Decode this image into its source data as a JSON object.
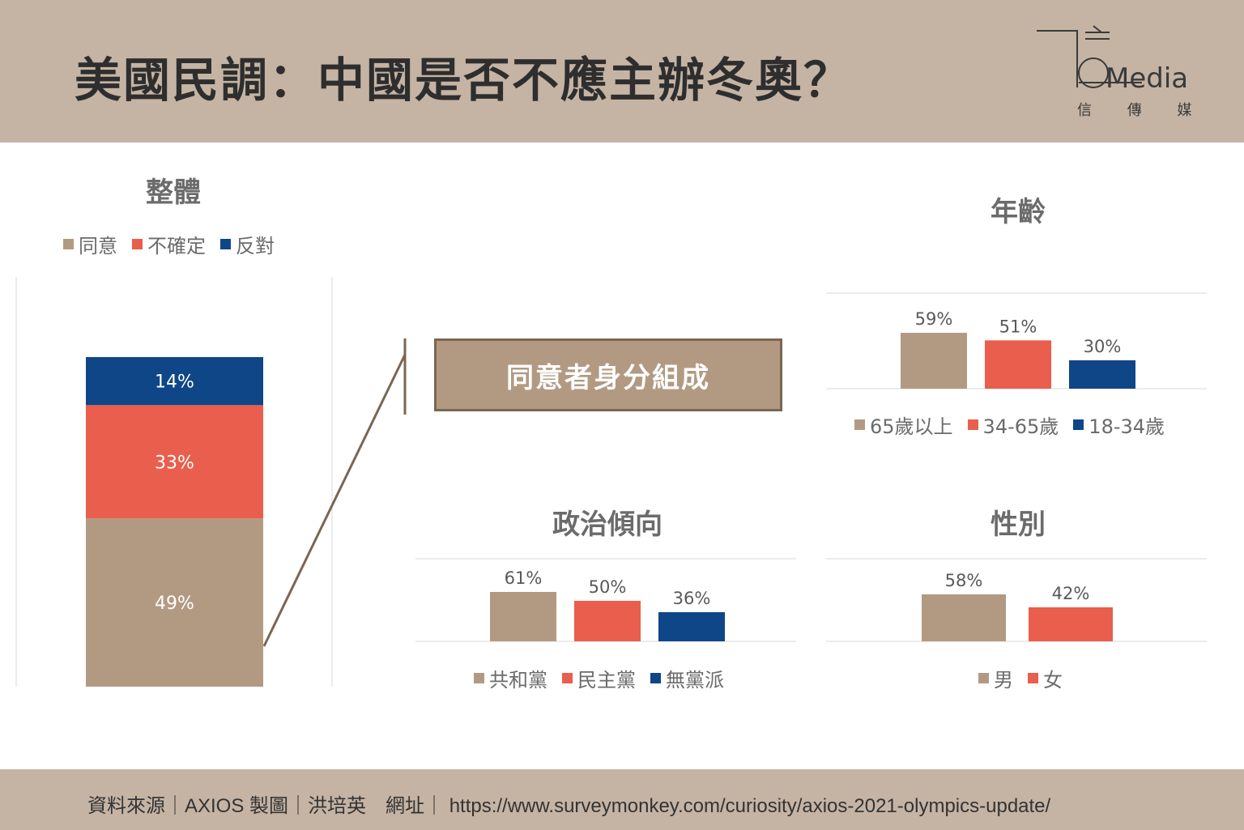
{
  "header": {
    "title": "美國民調：中國是否不應主辦冬奧？"
  },
  "logo": {
    "text": "Media",
    "subtitle": "信 傳 媒"
  },
  "callout": {
    "label": "同意者身分組成"
  },
  "colors": {
    "agree": "#b29a82",
    "unsure": "#e95e4c",
    "oppose": "#0f4687",
    "header": "#c5b4a4"
  },
  "footer": {
    "source": "資料來源｜AXIOS 製圖｜洪培英　網址｜ https://www.surveymonkey.com/curiosity/axios-2021-olympics-update/"
  },
  "chart_data": [
    {
      "id": "overall",
      "type": "bar",
      "stacked": true,
      "title": "整體",
      "categories": [
        ""
      ],
      "series": [
        {
          "name": "同意",
          "values": [
            49
          ],
          "label": "49%",
          "color": "#b29a82"
        },
        {
          "name": "不確定",
          "values": [
            33
          ],
          "label": "33%",
          "color": "#e95e4c"
        },
        {
          "name": "反對",
          "values": [
            14
          ],
          "label": "14%",
          "color": "#0f4687"
        }
      ],
      "legend": "top"
    },
    {
      "id": "age",
      "type": "bar",
      "title": "年齡",
      "categories": [
        "65歲以上",
        "34-65歲",
        "18-34歲"
      ],
      "values": [
        59,
        51,
        30
      ],
      "labels": [
        "59%",
        "51%",
        "30%"
      ],
      "colors": [
        "#b29a82",
        "#e95e4c",
        "#0f4687"
      ],
      "legend": "bottom"
    },
    {
      "id": "politics",
      "type": "bar",
      "title": "政治傾向",
      "categories": [
        "共和黨",
        "民主黨",
        "無黨派"
      ],
      "values": [
        61,
        50,
        36
      ],
      "labels": [
        "61%",
        "50%",
        "36%"
      ],
      "colors": [
        "#b29a82",
        "#e95e4c",
        "#0f4687"
      ],
      "legend": "bottom"
    },
    {
      "id": "gender",
      "type": "bar",
      "title": "性別",
      "categories": [
        "男",
        "女"
      ],
      "values": [
        58,
        42
      ],
      "labels": [
        "58%",
        "42%"
      ],
      "colors": [
        "#b29a82",
        "#e95e4c"
      ],
      "legend": "bottom"
    }
  ]
}
